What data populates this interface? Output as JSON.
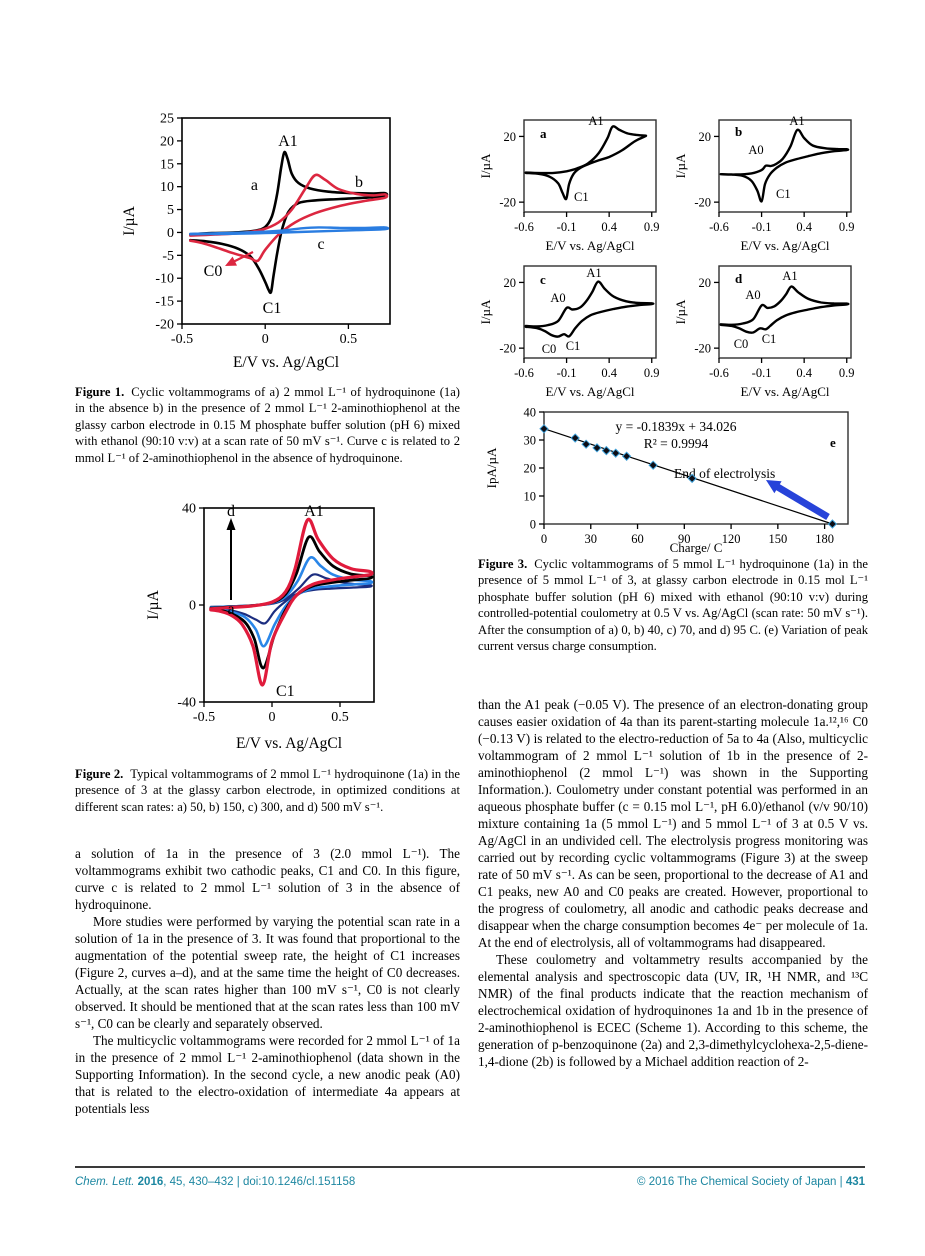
{
  "document": {
    "type": "journal page",
    "footer": {
      "journal_italic": "Chem. Lett.",
      "year_bold": " 2016",
      "citation_rest": ", 45, 430–432 | doi:10.1246/cl.151158",
      "copyright": "© 2016 The Chemical Society of Japan | ",
      "page_number": "431",
      "accent_color": "#1d87a1"
    }
  },
  "figures": {
    "fig1": {
      "label": "Figure 1.",
      "caption": "Cyclic voltammograms of a) 2 mmol L⁻¹ of hydroquinone (1a) in the absence b) in the presence of 2 mmol L⁻¹ 2-aminothiophenol at the glassy carbon electrode in 0.15 M phosphate buffer solution (pH 6) mixed with ethanol (90:10 v:v) at a scan rate of 50 mV s⁻¹. Curve c is related to 2 mmol L⁻¹ of 2-aminothiophenol in the absence of hydroquinone."
    },
    "fig2": {
      "label": "Figure 2.",
      "caption": "Typical voltammograms of 2 mmol L⁻¹ hydroquinone (1a) in the presence of 3 at the glassy carbon electrode, in optimized conditions at different scan rates: a) 50, b) 150, c) 300, and d) 500 mV s⁻¹."
    },
    "fig3": {
      "label": "Figure 3.",
      "caption": "Cyclic voltammograms of 5 mmol L⁻¹ hydroquinone (1a) in the presence of 5 mmol L⁻¹ of 3, at glassy carbon electrode in 0.15 mol L⁻¹ phosphate buffer solution (pH 6) mixed with ethanol (90:10 v:v) during controlled-potential coulometry at 0.5 V vs. Ag/AgCl (scan rate: 50 mV s⁻¹). After the consumption of a) 0, b) 40, c) 70, and d) 95 C. (e) Variation of peak current versus charge consumption."
    }
  },
  "body": {
    "left": [
      "a solution of 1a in the presence of 3 (2.0 mmol L⁻¹). The voltammograms exhibit two cathodic peaks, C1 and C0. In this figure, curve c is related to 2 mmol L⁻¹ solution of 3 in the absence of hydroquinone.",
      "More studies were performed by varying the potential scan rate in a solution of 1a in the presence of 3. It was found that proportional to the augmentation of the potential sweep rate, the height of C1 increases (Figure 2, curves a–d), and at the same time the height of C0 decreases. Actually, at the scan rates higher than 100 mV s⁻¹, C0 is not clearly observed. It should be mentioned that at the scan rates less than 100 mV s⁻¹, C0 can be clearly and separately observed.",
      "The multicyclic voltammograms were recorded for 2 mmol L⁻¹ of 1a in the presence of 2 mmol L⁻¹ 2-aminothiophenol (data shown in the Supporting Information). In the second cycle, a new anodic peak (A0) that is related to the electro-oxidation of intermediate 4a appears at potentials less"
    ],
    "right": [
      "than the A1 peak (−0.05 V). The presence of an electron-donating group causes easier oxidation of 4a than its parent-starting molecule 1a.¹²,¹⁶ C0 (−0.13 V) is related to the electro-reduction of 5a to 4a (Also, multicyclic voltammogram of 2 mmol L⁻¹ solution of 1b in the presence of 2-aminothiophenol (2 mmol L⁻¹) was shown in the Supporting Information.). Coulometry under constant potential was performed in an aqueous phosphate buffer (c = 0.15 mol L⁻¹, pH 6.0)/ethanol (v/v 90/10) mixture containing 1a (5 mmol L⁻¹) and 5 mmol L⁻¹ of 3 at 0.5 V vs. Ag/AgCl in an undivided cell. The electrolysis progress monitoring was carried out by recording cyclic voltammograms (Figure 3) at the sweep rate of 50 mV s⁻¹. As can be seen, proportional to the decrease of A1 and C1 peaks, new A0 and C0 peaks are created. However, proportional to the progress of coulometry, all anodic and cathodic peaks decrease and disappear when the charge consumption becomes 4e⁻ per molecule of 1a. At the end of electrolysis, all of voltammograms had disappeared.",
      "These coulometry and voltammetry results accompanied by the elemental analysis and spectroscopic data (UV, IR, ¹H NMR, and ¹³C NMR) of the final products indicate that the reaction mechanism of electrochemical oxidation of hydroquinones 1a and 1b in the presence of 2-aminothiophenol is ECEC (Scheme 1). According to this scheme, the generation of p-benzoquinone (2a) and 2,3-dimethylcyclohexa-2,5-diene-1,4-dione (2b) is followed by a Michael addition reaction of 2-"
    ]
  },
  "chart_data": [
    {
      "id": "figure1",
      "type": "line",
      "xlabel": "E/V vs. Ag/AgCl",
      "ylabel": "I/µA",
      "xlim": [
        -0.5,
        0.75
      ],
      "ylim": [
        -20,
        25
      ],
      "xticks": [
        -0.5,
        0,
        0.5
      ],
      "yticks": [
        25,
        20,
        15,
        10,
        5,
        0,
        -5,
        -10,
        -15,
        -20
      ],
      "series": [
        {
          "name": "a",
          "color": "#000000",
          "description": "2 mmol/L hydroquinone (1a) alone",
          "anodic_peak": {
            "label": "A1",
            "E": 0.12,
            "I": 17.5
          },
          "cathodic_peak": {
            "label": "C1",
            "E": 0.03,
            "I": -13
          }
        },
        {
          "name": "b",
          "color": "#dc2740",
          "description": "1a + 2 mmol/L 2-aminothiophenol",
          "anodic_peak": {
            "E": 0.3,
            "I": 12.5
          },
          "cathodic_peaks": [
            {
              "label": "C0",
              "E": -0.15,
              "I": -5
            },
            {
              "E": -0.04,
              "I": -6.2
            }
          ]
        },
        {
          "name": "c",
          "color": "#2a7de1",
          "description": "2-aminothiophenol alone (no hydroquinone)",
          "max_I": 1.1
        }
      ],
      "labels": {
        "A1": "A1",
        "a": "a",
        "b": "b",
        "c": "c",
        "C0": "C0",
        "C1": "C1"
      }
    },
    {
      "id": "figure2",
      "type": "line",
      "xlabel": "E/V vs. Ag/AgCl",
      "ylabel": "I/µA",
      "xlim": [
        -0.5,
        0.75
      ],
      "ylim": [
        -40,
        40
      ],
      "xticks": [
        -0.5,
        0,
        0.5
      ],
      "yticks": [
        40,
        0,
        -40
      ],
      "series": [
        {
          "name": "a",
          "scan_rate_mV_s": 50,
          "color": "#1c2e80",
          "anodic_peak_I": 12.5,
          "cathodic_peak_I": -7.5
        },
        {
          "name": "b",
          "scan_rate_mV_s": 150,
          "color": "#2a86e8",
          "anodic_peak_I": 19.5,
          "cathodic_peak_I": -17
        },
        {
          "name": "c",
          "scan_rate_mV_s": 300,
          "color": "#000000",
          "anodic_peak_I": 28,
          "cathodic_peak_I": -26
        },
        {
          "name": "d",
          "scan_rate_mV_s": 500,
          "color": "#e01b3c",
          "anodic_peak_I": 35,
          "cathodic_peak_I": -33
        }
      ],
      "labels": {
        "A1": "A1",
        "C1": "C1",
        "arrow_from": "a",
        "arrow_to": "d"
      }
    },
    {
      "id": "figure3a",
      "type": "line",
      "charge_consumed_C": 0,
      "xlabel": "E/V vs. Ag/AgCl",
      "ylabel": "I/µA",
      "xlim": [
        -0.6,
        0.95
      ],
      "ylim": [
        -26,
        30
      ],
      "xticks": [
        -0.6,
        -0.1,
        0.4,
        0.9
      ],
      "yticks": [
        20,
        -20
      ],
      "series": [
        {
          "name": "a",
          "color": "#000000",
          "anodic_peak": {
            "label": "A1",
            "E": 0.42,
            "I": 26
          },
          "cathodic_peak": {
            "label": "C1",
            "E": -0.1,
            "I": -18
          }
        }
      ],
      "labels": {
        "panel": "a",
        "A1": "A1",
        "C1": "C1"
      }
    },
    {
      "id": "figure3b",
      "type": "line",
      "charge_consumed_C": 40,
      "xlabel": "E/V vs. Ag/AgCl",
      "ylabel": "I/µA",
      "xlim": [
        -0.6,
        0.95
      ],
      "ylim": [
        -26,
        30
      ],
      "xticks": [
        -0.6,
        -0.1,
        0.4,
        0.9
      ],
      "yticks": [
        20,
        -20
      ],
      "series": [
        {
          "name": "b",
          "color": "#000000",
          "anodic_peaks": [
            {
              "label": "A0",
              "E": -0.05,
              "I": 3
            },
            {
              "label": "A1",
              "E": 0.32,
              "I": 24
            }
          ],
          "cathodic_peak": {
            "label": "C1",
            "E": -0.1,
            "I": -19.5
          }
        }
      ],
      "labels": {
        "panel": "b",
        "A0": "A0",
        "A1": "A1",
        "C1": "C1"
      }
    },
    {
      "id": "figure3c",
      "type": "line",
      "charge_consumed_C": 70,
      "xlabel": "E/V vs. Ag/AgCl",
      "ylabel": "I/µA",
      "xlim": [
        -0.6,
        0.95
      ],
      "ylim": [
        -26,
        30
      ],
      "xticks": [
        -0.6,
        -0.1,
        0.4,
        0.9
      ],
      "yticks": [
        20,
        -20
      ],
      "series": [
        {
          "name": "c",
          "color": "#000000",
          "anodic_peaks": [
            {
              "label": "A0",
              "E": -0.1,
              "I": 4.5
            },
            {
              "label": "A1",
              "E": 0.27,
              "I": 20.5
            }
          ],
          "cathodic_peaks": [
            {
              "label": "C0",
              "E": -0.2,
              "I": -13
            },
            {
              "label": "C1",
              "E": -0.07,
              "I": -12.8
            }
          ]
        }
      ],
      "labels": {
        "panel": "c",
        "A0": "A0",
        "A1": "A1",
        "C0": "C0",
        "C1": "C1"
      }
    },
    {
      "id": "figure3d",
      "type": "line",
      "charge_consumed_C": 95,
      "xlabel": "E/V vs. Ag/AgCl",
      "ylabel": "I/µA",
      "xlim": [
        -0.6,
        0.95
      ],
      "ylim": [
        -26,
        30
      ],
      "xticks": [
        -0.6,
        -0.1,
        0.4,
        0.9
      ],
      "yticks": [
        20,
        -20
      ],
      "series": [
        {
          "name": "d",
          "color": "#000000",
          "anodic_peaks": [
            {
              "label": "A0",
              "E": -0.1,
              "I": 6
            },
            {
              "label": "A1",
              "E": 0.25,
              "I": 17.5
            }
          ],
          "cathodic_peaks": [
            {
              "label": "C0",
              "E": -0.2,
              "I": -10.5
            },
            {
              "label": "C1",
              "E": -0.05,
              "I": -8.5
            }
          ]
        }
      ],
      "labels": {
        "panel": "d",
        "A0": "A0",
        "A1": "A1",
        "C0": "C0",
        "C1": "C1"
      }
    },
    {
      "id": "figure3e",
      "type": "scatter",
      "xlabel": "Charge/ C",
      "ylabel": "IpA/µA",
      "xlim": [
        0,
        195
      ],
      "ylim": [
        0,
        40
      ],
      "xticks": [
        0,
        30,
        60,
        90,
        120,
        150,
        180
      ],
      "yticks": [
        0,
        10,
        20,
        30,
        40
      ],
      "points": [
        [
          0,
          34
        ],
        [
          20,
          30.7
        ],
        [
          27,
          28.5
        ],
        [
          34,
          27.2
        ],
        [
          40,
          26.2
        ],
        [
          46,
          25.3
        ],
        [
          53,
          24.2
        ],
        [
          70,
          21
        ],
        [
          95,
          16.3
        ],
        [
          185,
          0
        ]
      ],
      "trendline": {
        "slope": -0.1839,
        "intercept": 34.026
      },
      "equation": "y = -0.1839x + 34.026",
      "r_squared": "R² = 0.9994",
      "marker_color": "#0d0d15",
      "marker_edge_color": "#3fa0d8",
      "arrow_color": "#2743d9",
      "labels": {
        "panel": "e",
        "annotation": "End of electrolysis"
      }
    }
  ]
}
